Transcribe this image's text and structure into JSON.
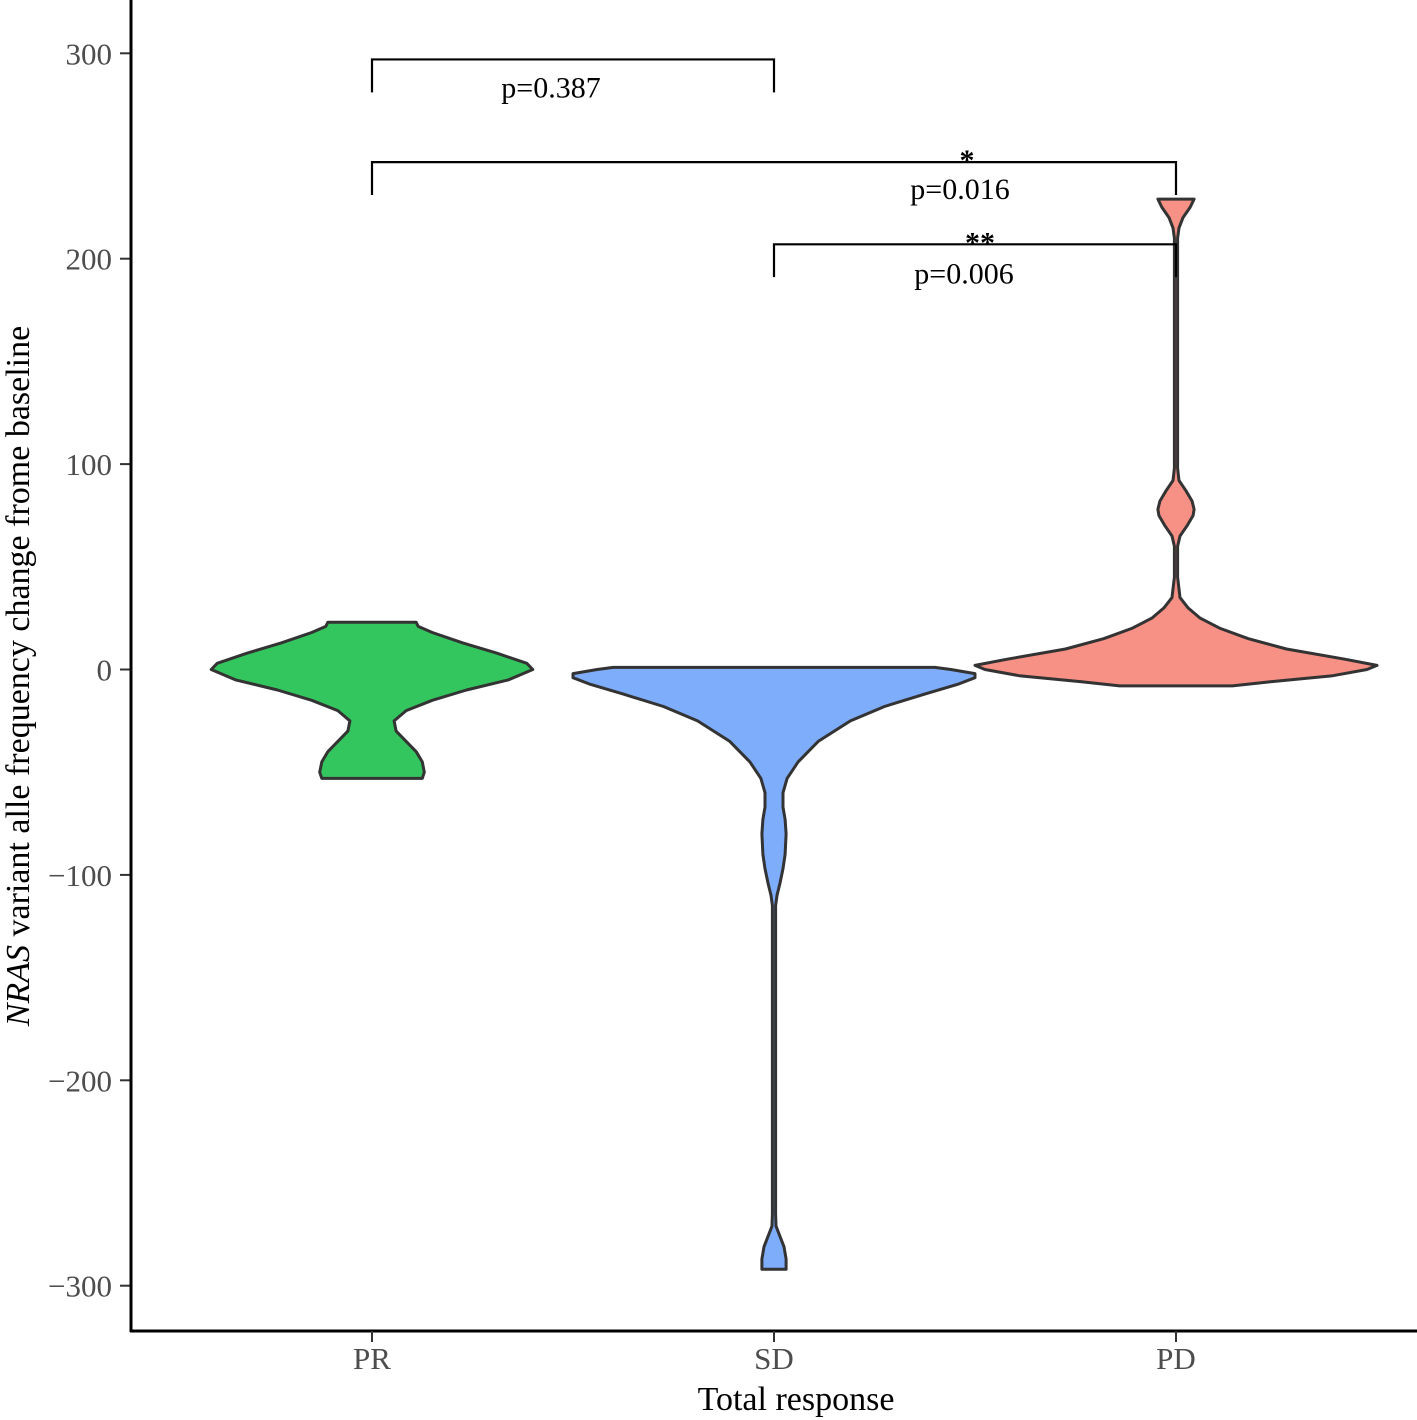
{
  "chart_data": {
    "type": "violin",
    "xlabel": "Total response",
    "ylabel": {
      "italic_part": "NRAS",
      "rest": " variant alle frequency change frome baseline"
    },
    "categories": [
      "PR",
      "SD",
      "PD"
    ],
    "y_ticks": [
      {
        "value": 300,
        "label": "300"
      },
      {
        "value": 200,
        "label": "200"
      },
      {
        "value": 100,
        "label": "100"
      },
      {
        "value": 0,
        "label": "0"
      },
      {
        "value": -100,
        "label": "−100"
      },
      {
        "value": -200,
        "label": "−200"
      },
      {
        "value": -300,
        "label": "−300"
      }
    ],
    "ylim": [
      -320,
      325
    ],
    "grid": false,
    "legend": "none",
    "series": [
      {
        "category": "PR",
        "color": "#34c65e",
        "y_range": [
          -53,
          23
        ],
        "profile": [
          [
            -53,
            0.25
          ],
          [
            -50,
            0.26
          ],
          [
            -45,
            0.25
          ],
          [
            -40,
            0.22
          ],
          [
            -35,
            0.17
          ],
          [
            -30,
            0.12
          ],
          [
            -25,
            0.11
          ],
          [
            -20,
            0.17
          ],
          [
            -15,
            0.3
          ],
          [
            -10,
            0.47
          ],
          [
            -5,
            0.68
          ],
          [
            0,
            0.8
          ],
          [
            3,
            0.77
          ],
          [
            8,
            0.62
          ],
          [
            13,
            0.45
          ],
          [
            18,
            0.3
          ],
          [
            21,
            0.23
          ],
          [
            23,
            0.22
          ]
        ]
      },
      {
        "category": "SD",
        "color": "#7eadfc",
        "y_range": [
          -292,
          1
        ],
        "profile": [
          [
            -292,
            0.06
          ],
          [
            -287,
            0.06
          ],
          [
            -281,
            0.05
          ],
          [
            -276,
            0.03
          ],
          [
            -271,
            0.01
          ],
          [
            -265,
            0.0
          ],
          [
            -200,
            0.0
          ],
          [
            -150,
            0.0
          ],
          [
            -115,
            0.005
          ],
          [
            -110,
            0.015
          ],
          [
            -104,
            0.03
          ],
          [
            -97,
            0.045
          ],
          [
            -90,
            0.055
          ],
          [
            -80,
            0.06
          ],
          [
            -73,
            0.055
          ],
          [
            -67,
            0.045
          ],
          [
            -60,
            0.045
          ],
          [
            -53,
            0.065
          ],
          [
            -45,
            0.12
          ],
          [
            -35,
            0.22
          ],
          [
            -25,
            0.38
          ],
          [
            -18,
            0.55
          ],
          [
            -12,
            0.75
          ],
          [
            -7,
            0.92
          ],
          [
            -4,
            1.0
          ],
          [
            -2,
            1.0
          ],
          [
            0,
            0.88
          ],
          [
            1,
            0.8
          ]
        ]
      },
      {
        "category": "PD",
        "color": "#f79085",
        "y_range": [
          -8,
          229
        ],
        "profile": [
          [
            -8,
            0.28
          ],
          [
            -6,
            0.47
          ],
          [
            -3,
            0.78
          ],
          [
            0,
            0.95
          ],
          [
            2,
            1.0
          ],
          [
            5,
            0.84
          ],
          [
            10,
            0.55
          ],
          [
            15,
            0.36
          ],
          [
            20,
            0.22
          ],
          [
            25,
            0.12
          ],
          [
            30,
            0.06
          ],
          [
            35,
            0.02
          ],
          [
            45,
            0.005
          ],
          [
            55,
            0.005
          ],
          [
            60,
            0.008
          ],
          [
            65,
            0.02
          ],
          [
            70,
            0.055
          ],
          [
            75,
            0.085
          ],
          [
            78,
            0.09
          ],
          [
            82,
            0.08
          ],
          [
            87,
            0.05
          ],
          [
            92,
            0.015
          ],
          [
            98,
            0.005
          ],
          [
            140,
            0.005
          ],
          [
            190,
            0.005
          ],
          [
            210,
            0.008
          ],
          [
            215,
            0.015
          ],
          [
            220,
            0.035
          ],
          [
            225,
            0.07
          ],
          [
            229,
            0.09
          ]
        ]
      }
    ],
    "comparisons": [
      {
        "from": "PR",
        "to": "SD",
        "y": 297,
        "drop": 16,
        "p_label": "p=0.387",
        "stars": ""
      },
      {
        "from": "PR",
        "to": "PD",
        "y": 247,
        "drop": 16,
        "p_label": "p=0.016",
        "stars": "*"
      },
      {
        "from": "SD",
        "to": "PD",
        "y": 207,
        "drop": 16,
        "p_label": "p=0.006",
        "stars": "**"
      }
    ]
  }
}
